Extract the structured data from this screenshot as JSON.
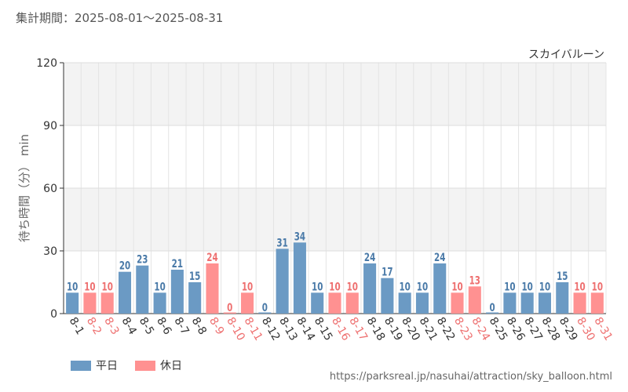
{
  "header": {
    "title": "集計期間：2025-08-01～2025-08-31"
  },
  "source": {
    "url": "https://parksreal.jp/nasuhai/attraction/sky_balloon.html"
  },
  "colors": {
    "weekday": "#6b9ac4",
    "holiday": "#ff9191",
    "weekday_label": "#4a7aa8",
    "holiday_label": "#ee7070"
  },
  "legend": [
    {
      "label": "平日",
      "color_key": "weekday"
    },
    {
      "label": "休日",
      "color_key": "holiday"
    }
  ],
  "chart_data": {
    "type": "bar",
    "title": "スカイバルーン",
    "ylabel": "待ち時間（分） min",
    "xlabel": "",
    "ylim": [
      0,
      120
    ],
    "yticks": [
      0,
      30,
      60,
      90,
      120
    ],
    "grid": true,
    "categories": [
      "8-1",
      "8-2",
      "8-3",
      "8-4",
      "8-5",
      "8-6",
      "8-7",
      "8-8",
      "8-9",
      "8-10",
      "8-11",
      "8-12",
      "8-13",
      "8-14",
      "8-15",
      "8-16",
      "8-17",
      "8-18",
      "8-19",
      "8-20",
      "8-21",
      "8-22",
      "8-23",
      "8-24",
      "8-25",
      "8-26",
      "8-27",
      "8-28",
      "8-29",
      "8-30",
      "8-31"
    ],
    "values": [
      10,
      10,
      10,
      20,
      23,
      10,
      21,
      15,
      24,
      0,
      10,
      0,
      31,
      34,
      10,
      10,
      10,
      24,
      17,
      10,
      10,
      24,
      10,
      13,
      0,
      10,
      10,
      10,
      15,
      10,
      10
    ],
    "day_type": [
      "weekday",
      "holiday",
      "holiday",
      "weekday",
      "weekday",
      "weekday",
      "weekday",
      "weekday",
      "holiday",
      "holiday",
      "holiday",
      "weekday",
      "weekday",
      "weekday",
      "weekday",
      "holiday",
      "holiday",
      "weekday",
      "weekday",
      "weekday",
      "weekday",
      "weekday",
      "holiday",
      "holiday",
      "weekday",
      "weekday",
      "weekday",
      "weekday",
      "weekday",
      "holiday",
      "holiday"
    ]
  }
}
